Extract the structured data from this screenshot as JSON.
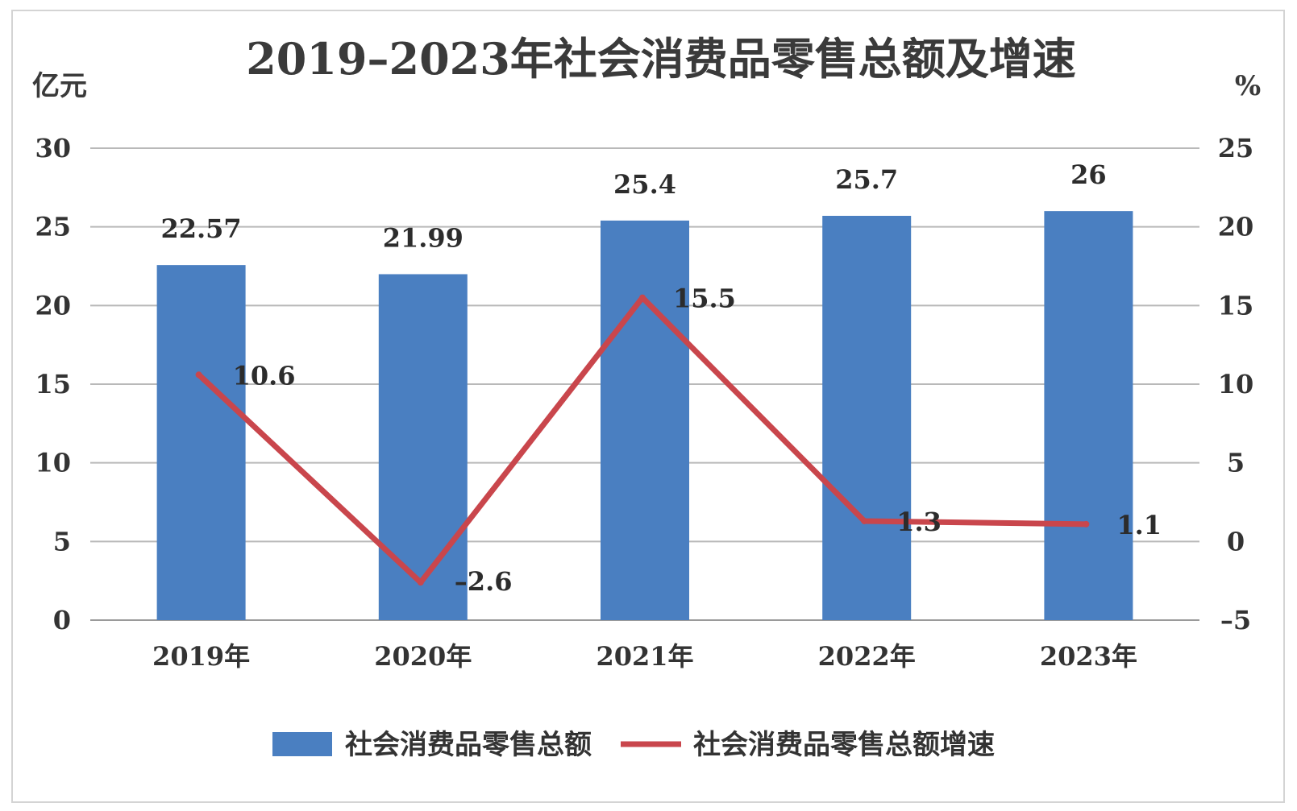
{
  "chart_data": {
    "type": "bar",
    "title": "2019–2023年社会消费品零售总额及增速",
    "y_left_label": "亿元",
    "y_right_label": "%",
    "categories": [
      "2019年",
      "2020年",
      "2021年",
      "2022年",
      "2023年"
    ],
    "y_left_ticks": [
      "0",
      "5",
      "10",
      "15",
      "20",
      "25",
      "30"
    ],
    "y_right_ticks": [
      "–5",
      "0",
      "5",
      "10",
      "15",
      "20",
      "25"
    ],
    "ylim_left": [
      0,
      30
    ],
    "ylim_right": [
      -5,
      25
    ],
    "grid": true,
    "legend_position": "bottom",
    "series": [
      {
        "name": "社会消费品零售总额",
        "type": "bar",
        "axis": "left",
        "color": "#4a7fc1",
        "values": [
          22.57,
          21.99,
          25.4,
          25.7,
          26
        ],
        "labels": [
          "22.57",
          "21.99",
          "25.4",
          "25.7",
          "26"
        ]
      },
      {
        "name": "社会消费品零售总额增速",
        "type": "line",
        "axis": "right",
        "color": "#c9464c",
        "values": [
          10.6,
          -2.6,
          15.5,
          1.3,
          1.1
        ],
        "labels": [
          "10.6",
          "–2.6",
          "15.5",
          "1.3",
          "1.1"
        ]
      }
    ]
  }
}
